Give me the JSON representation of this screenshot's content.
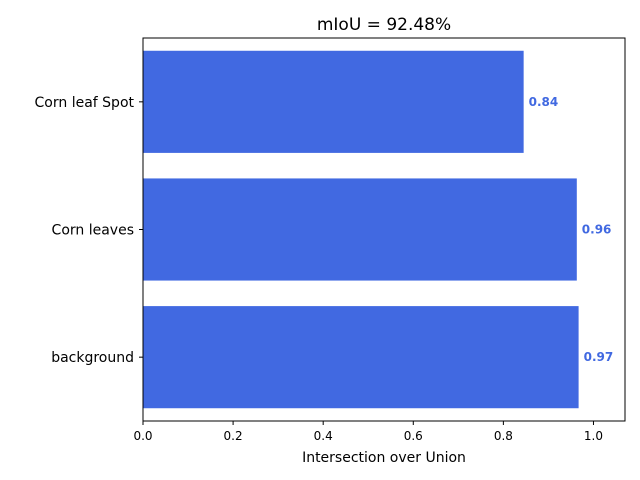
{
  "chart_data": {
    "type": "bar",
    "orientation": "horizontal",
    "title": "mIoU = 92.48%",
    "xlabel": "Intersection over Union",
    "ylabel": "",
    "categories": [
      "Corn leaf Spot",
      "Corn leaves",
      "background"
    ],
    "values": [
      0.845,
      0.963,
      0.967
    ],
    "data_labels": [
      "0.84",
      "0.96",
      "0.97"
    ],
    "xlim": [
      0,
      1.07
    ],
    "xticks": [
      0.0,
      0.2,
      0.4,
      0.6,
      0.8,
      1.0
    ],
    "xtick_labels": [
      "0.0",
      "0.2",
      "0.4",
      "0.6",
      "0.8",
      "1.0"
    ],
    "grid": false,
    "bar_color": "#4169e1",
    "label_color": "#4169e1"
  }
}
